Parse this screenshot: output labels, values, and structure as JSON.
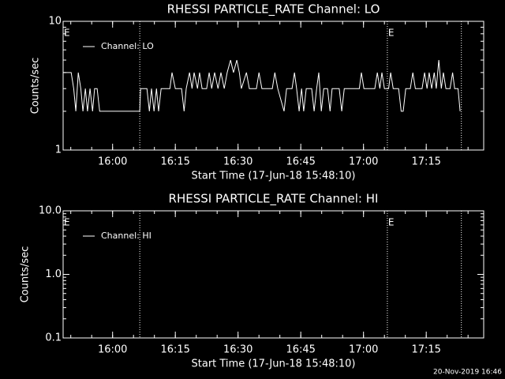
{
  "chart_data": [
    {
      "type": "line",
      "title": "RHESSI PARTICLE_RATE Channel: LO",
      "xlabel": "Start Time (17-Jun-18 15:48:10)",
      "ylabel": "Counts/sec",
      "log_y": true,
      "legend": "upper left",
      "xlim": [
        948.17,
        1048.74
      ],
      "ylim": [
        1,
        10
      ],
      "xticks": [
        {
          "value": 960,
          "label": "16:00"
        },
        {
          "value": 975,
          "label": "16:15"
        },
        {
          "value": 990,
          "label": "16:30"
        },
        {
          "value": 1005,
          "label": "16:45"
        },
        {
          "value": 1020,
          "label": "17:00"
        },
        {
          "value": 1035,
          "label": "17:15"
        }
      ],
      "yticks": [
        1,
        10
      ],
      "dotted_lines": [
        966.5,
        1025.7,
        1043.4
      ],
      "markers": [
        {
          "x": 948.17,
          "label": "E"
        },
        {
          "x": 1025.7,
          "label": "E"
        }
      ],
      "series": [
        {
          "name": "Channel: LO",
          "color": "#ffffff",
          "x": [
            948.2,
            950.1,
            950.7,
            951.2,
            951.8,
            952.4,
            952.9,
            953.5,
            954.0,
            954.6,
            955.2,
            955.7,
            956.3,
            956.9,
            957.6,
            966.5,
            966.7,
            968.2,
            968.8,
            969.3,
            969.9,
            970.5,
            971.0,
            971.6,
            973.7,
            974.2,
            975.0,
            976.5,
            977.1,
            977.6,
            978.4,
            979.0,
            979.5,
            980.3,
            980.8,
            981.4,
            982.5,
            983.1,
            983.7,
            984.4,
            985.2,
            985.9,
            986.7,
            987.4,
            988.2,
            988.9,
            989.7,
            990.3,
            990.8,
            992.0,
            992.7,
            994.4,
            995.0,
            995.7,
            998.2,
            998.8,
            999.5,
            1001.0,
            1001.6,
            1002.9,
            1003.5,
            1004.0,
            1004.6,
            1005.2,
            1005.7,
            1006.3,
            1007.6,
            1008.2,
            1008.8,
            1009.3,
            1009.9,
            1010.5,
            1011.4,
            1012.0,
            1012.5,
            1014.2,
            1014.8,
            1015.4,
            1019.0,
            1019.5,
            1020.1,
            1022.7,
            1023.3,
            1023.9,
            1024.4,
            1025.0,
            1026.0,
            1026.5,
            1027.1,
            1028.4,
            1029.0,
            1029.5,
            1030.1,
            1031.2,
            1031.8,
            1032.4,
            1034.0,
            1034.6,
            1035.2,
            1035.7,
            1036.3,
            1036.9,
            1037.4,
            1038.0,
            1038.6,
            1039.1,
            1039.7,
            1040.7,
            1041.3,
            1041.8,
            1042.6,
            1043.1
          ],
          "values": [
            4,
            4,
            3,
            2,
            4,
            3,
            2,
            3,
            2,
            3,
            2,
            3,
            3,
            2,
            2,
            2,
            3,
            3,
            2,
            3,
            2,
            3,
            2,
            3,
            3,
            4,
            3,
            3,
            2,
            3,
            4,
            3,
            4,
            3,
            4,
            3,
            3,
            4,
            3,
            4,
            3,
            4,
            3,
            4,
            5,
            4,
            5,
            4,
            3,
            4,
            3,
            3,
            4,
            3,
            3,
            4,
            3,
            2,
            3,
            3,
            4,
            3,
            2,
            3,
            2,
            3,
            3,
            2,
            3,
            4,
            2,
            3,
            3,
            2,
            3,
            3,
            2,
            3,
            3,
            4,
            3,
            3,
            4,
            3,
            4,
            3,
            3,
            4,
            3,
            3,
            2,
            2,
            3,
            3,
            4,
            3,
            3,
            4,
            3,
            4,
            3,
            4,
            3,
            5,
            3,
            4,
            3,
            3,
            4,
            3,
            3,
            2
          ]
        }
      ]
    },
    {
      "type": "line",
      "title": "RHESSI PARTICLE_RATE Channel: HI",
      "xlabel": "Start Time (17-Jun-18 15:48:10)",
      "ylabel": "Counts/sec",
      "log_y": true,
      "legend": "upper left",
      "xlim": [
        948.17,
        1048.74
      ],
      "ylim": [
        0.1,
        10
      ],
      "xticks": [
        {
          "value": 960,
          "label": "16:00"
        },
        {
          "value": 975,
          "label": "16:15"
        },
        {
          "value": 990,
          "label": "16:30"
        },
        {
          "value": 1005,
          "label": "16:45"
        },
        {
          "value": 1020,
          "label": "17:00"
        },
        {
          "value": 1035,
          "label": "17:15"
        }
      ],
      "yticks": [
        {
          "value": 0.1,
          "label": "0.1"
        },
        {
          "value": 1,
          "label": "1.0"
        },
        {
          "value": 10,
          "label": "10.0"
        }
      ],
      "dotted_lines": [
        966.5,
        1025.7,
        1043.4
      ],
      "markers": [
        {
          "x": 948.17,
          "label": "E"
        },
        {
          "x": 1025.7,
          "label": "E"
        }
      ],
      "series": [
        {
          "name": "Channel: HI",
          "color": "#ffffff",
          "x": [],
          "values": []
        }
      ]
    }
  ],
  "footer": "20-Nov-2019 16:46"
}
